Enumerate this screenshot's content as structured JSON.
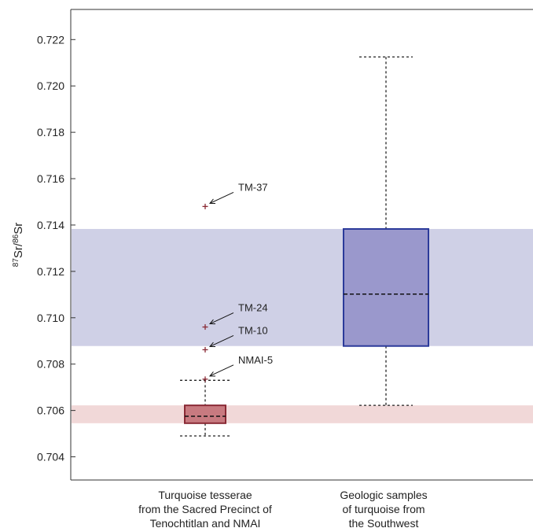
{
  "chart_data": {
    "type": "box",
    "ylabel": {
      "base1": "Sr",
      "sup1": "87",
      "base2": "Sr",
      "sup2": "86",
      "sep": "/"
    },
    "ylim": [
      0.703,
      0.7233
    ],
    "yticks": [
      0.704,
      0.706,
      0.708,
      0.71,
      0.712,
      0.714,
      0.716,
      0.718,
      0.72,
      0.722
    ],
    "categories": [
      {
        "lines": [
          "Turquoise tesserae",
          "from the Sacred Precinct of",
          "Tenochtitlan and NMAI"
        ],
        "whisker_low": 0.7049,
        "q1": 0.70545,
        "median": 0.70575,
        "q3": 0.70622,
        "whisker_high": 0.7073,
        "fill": "#c87a80",
        "stroke": "#8a2a35",
        "outliers": [
          {
            "label": "NMAI-5",
            "value": 0.70735
          },
          {
            "label": "TM-10",
            "value": 0.70862
          },
          {
            "label": "TM-24",
            "value": 0.7096
          },
          {
            "label": "TM-37",
            "value": 0.7148
          }
        ]
      },
      {
        "lines": [
          "Geologic samples",
          "of turquoise from",
          "the Southwest"
        ],
        "whisker_low": 0.70622,
        "q1": 0.70878,
        "median": 0.71102,
        "q3": 0.71383,
        "whisker_high": 0.72125,
        "fill": "#9a98cc",
        "stroke": "#2b3a9a",
        "outliers": []
      }
    ],
    "bands": [
      {
        "from": 0.70878,
        "to": 0.71383,
        "color": "#cfd0e6"
      },
      {
        "from": 0.70545,
        "to": 0.70622,
        "color": "#f1d8d8"
      }
    ],
    "outlier_color": "#8a2a35"
  }
}
